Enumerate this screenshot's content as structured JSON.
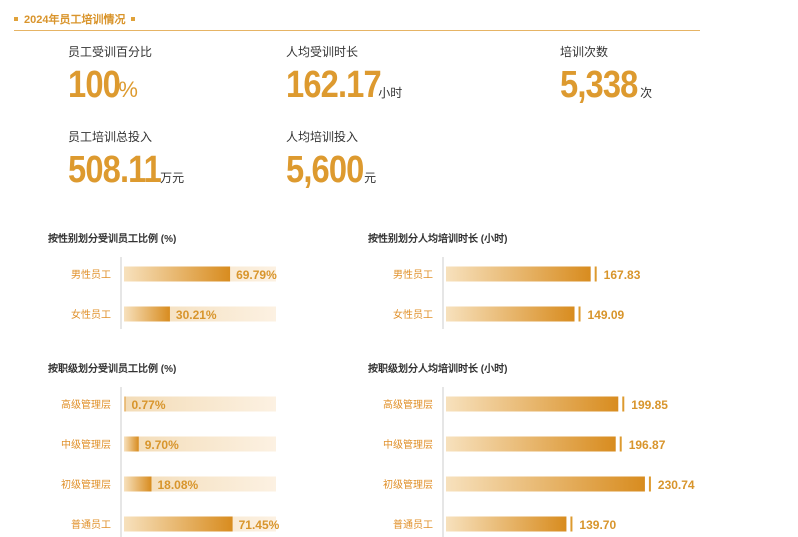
{
  "header": {
    "title": "2024年员工培训情况"
  },
  "stats": {
    "trained_pct": {
      "label": "员工受训百分比",
      "value": "100",
      "unit": "%"
    },
    "hours_per_capita": {
      "label": "人均受训时长",
      "value": "162.17",
      "unit": "小时"
    },
    "training_count": {
      "label": "培训次数",
      "value": "5,338",
      "unit": "次"
    },
    "total_investment": {
      "label": "员工培训总投入",
      "value": "508.11",
      "unit": "万元"
    },
    "investment_per_capita": {
      "label": "人均培训投入",
      "value": "5,600",
      "unit": "元"
    }
  },
  "colors": {
    "accent": "#dd9a2f",
    "bar_light": "#f6e3c6"
  },
  "chart_data": [
    {
      "type": "bar",
      "title": "按性别划分受训员工比例 (%)",
      "categories": [
        "男性员工",
        "女性员工"
      ],
      "values": [
        69.79,
        30.21
      ],
      "value_labels": [
        "69.79%",
        "30.21%"
      ],
      "orientation": "horizontal",
      "background_track": true,
      "xlim": [
        0,
        100
      ]
    },
    {
      "type": "bar",
      "title": "按性别划分人均培训时长 (小时)",
      "categories": [
        "男性员工",
        "女性员工"
      ],
      "values": [
        167.83,
        149.09
      ],
      "value_labels": [
        "167.83",
        "149.09"
      ],
      "orientation": "horizontal",
      "background_track": false,
      "xlim": [
        0,
        290
      ]
    },
    {
      "type": "bar",
      "title": "按职级划分受训员工比例 (%)",
      "categories": [
        "高级管理层",
        "中级管理层",
        "初级管理层",
        "普通员工"
      ],
      "values": [
        0.77,
        9.7,
        18.08,
        71.45
      ],
      "value_labels": [
        "0.77%",
        "9.70%",
        "18.08%",
        "71.45%"
      ],
      "orientation": "horizontal",
      "background_track": true,
      "xlim": [
        0,
        100
      ]
    },
    {
      "type": "bar",
      "title": "按职级划分人均培训时长 (小时)",
      "categories": [
        "高级管理层",
        "中级管理层",
        "初级管理层",
        "普通员工"
      ],
      "values": [
        199.85,
        196.87,
        230.74,
        139.7
      ],
      "value_labels": [
        "199.85",
        "196.87",
        "230.74",
        "139.70"
      ],
      "orientation": "horizontal",
      "background_track": false,
      "xlim": [
        0,
        290
      ]
    }
  ]
}
